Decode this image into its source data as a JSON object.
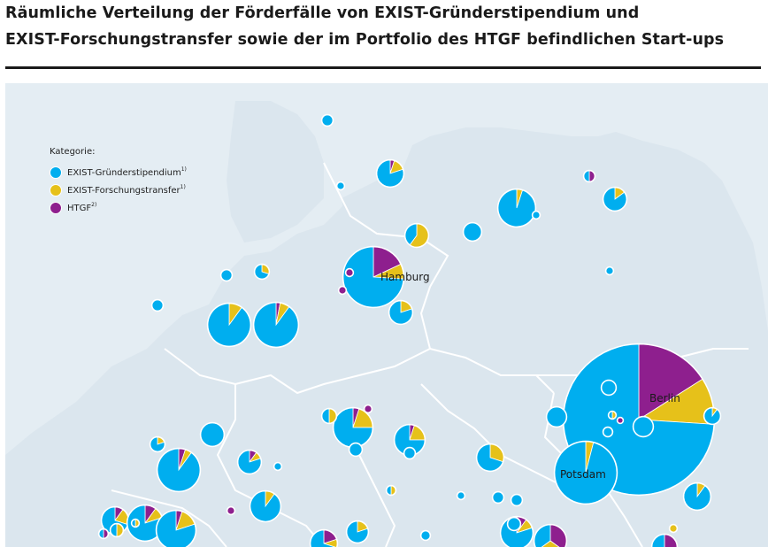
{
  "header": {
    "title_line1": "Räumliche Verteilung der Förderfälle von EXIST-Gründerstipendium und",
    "title_line2": "EXIST-Forschungstransfer sowie der im Portfolio des HTGF befindlichen Start-ups"
  },
  "legend": {
    "title": "Kategorie:",
    "items": [
      {
        "label": "EXIST-Gründerstipendium",
        "sup": "1)",
        "color": "#00aeef"
      },
      {
        "label": "EXIST-Forschungstransfer",
        "sup": "1)",
        "color": "#e6c11a"
      },
      {
        "label": "HTGF",
        "sup": "2)",
        "color": "#8e1f8e"
      }
    ]
  },
  "colors": {
    "land": "#dbe6ee",
    "sea": "#e4edf3",
    "border": "#ffffff",
    "gruender": "#00aeef",
    "forschung": "#e6c11a",
    "htgf": "#8e1f8e"
  },
  "cities": {
    "hamburg": "Hamburg",
    "berlin": "Berlin",
    "potsdam": "Potsdam"
  }
}
